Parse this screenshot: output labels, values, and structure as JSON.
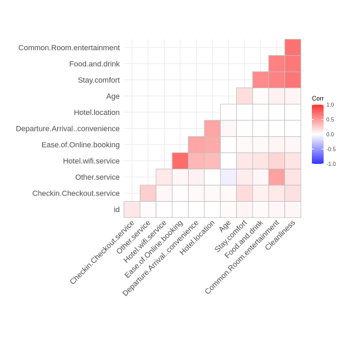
{
  "chart_data": {
    "type": "heatmap",
    "variables": [
      "id",
      "Checkin.Checkout.service",
      "Other.service",
      "Hotel.wifi.service",
      "Ease.of.Online.booking",
      "Departure.Arrival..convenience",
      "Hotel.location",
      "Age",
      "Stay.comfort",
      "Food.and.drink",
      "Common.Room.entertainment",
      "Cleanliness"
    ],
    "x_labels": [
      "Checkin.Checkout.service",
      "Other.service",
      "Hotel.wifi.service",
      "Ease.of.Online.booking",
      "Departure.Arrival..convenience",
      "Hotel.location",
      "Age",
      "Stay.comfort",
      "Food.and.drink",
      "Common.Room.entertainment",
      "Cleanliness"
    ],
    "y_labels": [
      "id",
      "Checkin.Checkout.service",
      "Other.service",
      "Hotel.wifi.service",
      "Ease.of.Online.booking",
      "Departure.Arrival..convenience",
      "Hotel.location",
      "Age",
      "Stay.comfort",
      "Food.and.drink",
      "Common.Room.entertainment"
    ],
    "matrix": [
      [
        0.0,
        0.12,
        0.02,
        0.0,
        0.0,
        0.0,
        0.0,
        0.02,
        0.05,
        0.02,
        0.04,
        0.04
      ],
      [
        0.12,
        0.0,
        0.24,
        0.04,
        0.01,
        0.03,
        0.03,
        0.03,
        0.17,
        0.07,
        0.11,
        0.15
      ],
      [
        0.02,
        0.24,
        0.0,
        0.11,
        0.04,
        0.07,
        0.0,
        -0.08,
        0.09,
        0.04,
        0.46,
        0.13
      ],
      [
        0.0,
        0.04,
        0.11,
        0.0,
        0.72,
        0.36,
        0.34,
        0.0,
        0.12,
        0.13,
        0.2,
        0.13
      ],
      [
        0.0,
        0.01,
        0.04,
        0.72,
        0.0,
        0.44,
        0.42,
        0.01,
        0.03,
        0.03,
        0.05,
        0.04
      ],
      [
        0.0,
        0.03,
        0.07,
        0.36,
        0.44,
        0.0,
        0.44,
        0.04,
        0.01,
        0.0,
        0.0,
        0.0
      ],
      [
        0.0,
        0.03,
        0.0,
        0.34,
        0.42,
        0.44,
        0.0,
        0.0,
        0.0,
        0.0,
        0.0,
        0.0
      ],
      [
        0.02,
        0.03,
        -0.08,
        0.0,
        0.01,
        0.04,
        0.0,
        0.0,
        0.16,
        0.02,
        0.07,
        0.05
      ],
      [
        0.05,
        0.17,
        0.09,
        0.12,
        0.03,
        0.01,
        0.0,
        0.16,
        0.0,
        0.57,
        0.61,
        0.67
      ],
      [
        0.02,
        0.07,
        0.04,
        0.13,
        0.03,
        0.0,
        0.0,
        0.02,
        0.57,
        0.0,
        0.62,
        0.66
      ],
      [
        0.04,
        0.11,
        0.46,
        0.2,
        0.05,
        0.0,
        0.0,
        0.07,
        0.61,
        0.62,
        0.0,
        0.69
      ],
      [
        0.04,
        0.15,
        0.13,
        0.13,
        0.04,
        0.0,
        0.0,
        0.05,
        0.67,
        0.66,
        0.69,
        0.0
      ]
    ],
    "color_scale": {
      "low": "#3333ff",
      "mid": "#ffffff",
      "high": "#ff3333",
      "limits": [
        -1,
        1
      ]
    },
    "legend": {
      "title": "Corr",
      "position": "right",
      "tick_labels": [
        "1.0",
        "0.5",
        "0.0",
        "-0.5",
        "-1.0"
      ],
      "tick_values": [
        1.0,
        0.5,
        0.0,
        -0.5,
        -1.0
      ]
    },
    "grid": true
  }
}
